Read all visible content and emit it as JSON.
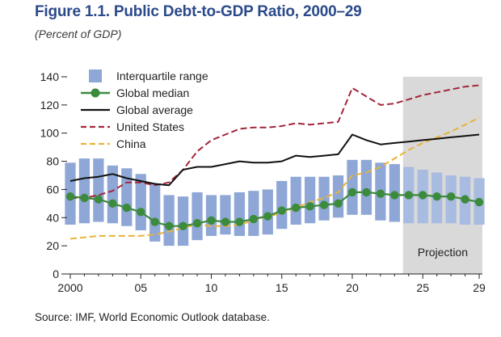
{
  "figure": {
    "title": "Figure 1.1. Public Debt-to-GDP Ratio, 2000–29",
    "subtitle": "(Percent of GDP)",
    "source": "Source: IMF, World Economic Outlook database."
  },
  "chart_data": {
    "type": "line",
    "x": [
      2000,
      2001,
      2002,
      2003,
      2004,
      2005,
      2006,
      2007,
      2008,
      2009,
      2010,
      2011,
      2012,
      2013,
      2014,
      2015,
      2016,
      2017,
      2018,
      2019,
      2020,
      2021,
      2022,
      2023,
      2024,
      2025,
      2026,
      2027,
      2028,
      2029
    ],
    "xticks": [
      2000,
      2005,
      2010,
      2015,
      2020,
      2025,
      2029
    ],
    "xtick_labels": [
      "2000",
      "05",
      "10",
      "15",
      "20",
      "25",
      "29"
    ],
    "ylim": [
      0,
      140
    ],
    "yticks": [
      0,
      20,
      40,
      60,
      80,
      100,
      120,
      140
    ],
    "projection_start": 2023.6,
    "projection_label": "Projection",
    "interquartile_range": {
      "name": "Interquartile range",
      "color": "#8fa7d6",
      "projection_color": "#a8bbe0",
      "low": [
        35,
        36,
        37,
        36,
        34,
        31,
        23,
        20,
        20,
        24,
        27,
        28,
        27,
        27,
        28,
        32,
        35,
        36,
        38,
        40,
        42,
        42,
        38,
        37,
        36,
        36,
        36,
        36,
        35,
        35
      ],
      "high": [
        79,
        82,
        82,
        77,
        75,
        71,
        64,
        56,
        55,
        58,
        56,
        56,
        58,
        59,
        60,
        66,
        69,
        69,
        69,
        70,
        81,
        81,
        79,
        78,
        76,
        74,
        72,
        70,
        69,
        68
      ]
    },
    "series": [
      {
        "name": "Global median",
        "style": "line-markers",
        "color": "#3c8a3c",
        "values": [
          55,
          54,
          53,
          50,
          47,
          44,
          37,
          34,
          34,
          36,
          38,
          37,
          37,
          39,
          41,
          45,
          47,
          48,
          49,
          50,
          58,
          58,
          57,
          56,
          56,
          56,
          55,
          55,
          53,
          51
        ]
      },
      {
        "name": "Global average",
        "style": "solid",
        "color": "#111111",
        "values": [
          66,
          68,
          69,
          71,
          68,
          66,
          64,
          63,
          74,
          76,
          76,
          78,
          80,
          79,
          79,
          80,
          84,
          83,
          84,
          85,
          99,
          95,
          92,
          93,
          94,
          95,
          96,
          97,
          98,
          99
        ]
      },
      {
        "name": "United States",
        "style": "dashed",
        "color": "#a3263a",
        "values": [
          54,
          54,
          56,
          59,
          65,
          65,
          63,
          65,
          74,
          87,
          95,
          99,
          103,
          104,
          104,
          105,
          107,
          106,
          107,
          108,
          132,
          126,
          120,
          121,
          124,
          127,
          129,
          131,
          133,
          134
        ]
      },
      {
        "name": "China",
        "style": "dashed",
        "color": "#e8b339",
        "values": [
          25,
          26,
          27,
          27,
          27,
          27,
          28,
          30,
          33,
          35,
          34,
          34,
          35,
          38,
          41,
          43,
          47,
          51,
          54,
          58,
          70,
          72,
          76,
          82,
          88,
          93,
          97,
          101,
          106,
          111
        ]
      }
    ]
  }
}
